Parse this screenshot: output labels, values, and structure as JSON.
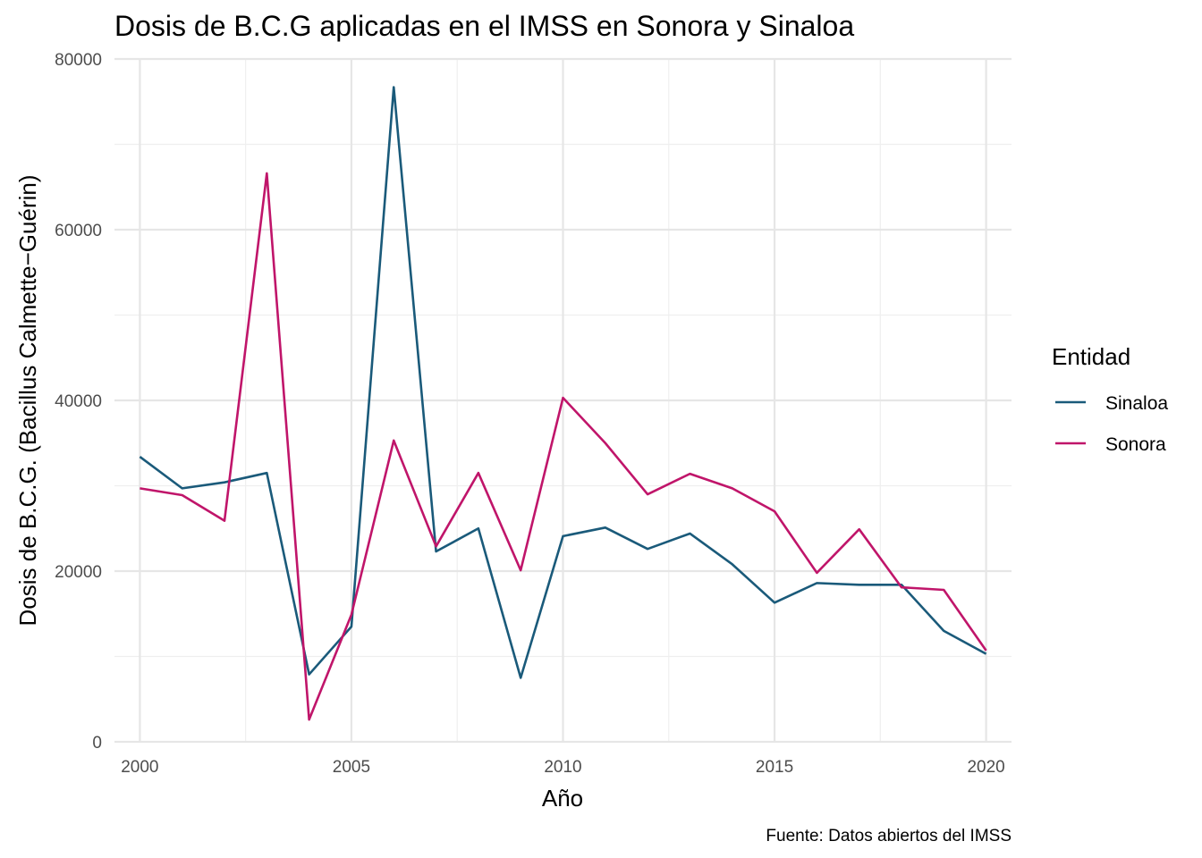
{
  "chart_data": {
    "type": "line",
    "title": "Dosis de B.C.G aplicadas en el IMSS en Sonora y Sinaloa",
    "xlabel": "Año",
    "ylabel": "Dosis de B.C.G. (Bacillus Calmette−Guérin)",
    "caption": "Fuente: Datos abiertos del IMSS",
    "legend_title": "Entidad",
    "legend_position": "right",
    "grid": true,
    "xlim": [
      1999.4,
      2020.6
    ],
    "ylim": [
      0,
      80000
    ],
    "x_ticks": [
      2000,
      2005,
      2010,
      2015,
      2020
    ],
    "x_tick_labels": [
      "2000",
      "2005",
      "2010",
      "2015",
      "2020"
    ],
    "y_ticks": [
      0,
      20000,
      40000,
      60000,
      80000
    ],
    "y_tick_labels": [
      "0",
      "20000",
      "40000",
      "60000",
      "80000"
    ],
    "x": [
      2000,
      2001,
      2002,
      2003,
      2004,
      2005,
      2006,
      2007,
      2008,
      2009,
      2010,
      2011,
      2012,
      2013,
      2014,
      2015,
      2016,
      2017,
      2018,
      2019,
      2020
    ],
    "series": [
      {
        "name": "Sinaloa",
        "color": "#1a5a7a",
        "values": [
          33400,
          29700,
          30400,
          31500,
          7900,
          13500,
          76700,
          22300,
          25000,
          7500,
          24100,
          25100,
          22600,
          24400,
          20800,
          16300,
          18600,
          18400,
          18400,
          13000,
          10300
        ]
      },
      {
        "name": "Sonora",
        "color": "#c0156a",
        "values": [
          29700,
          28900,
          25900,
          66600,
          2600,
          14900,
          35300,
          22900,
          31500,
          20100,
          40300,
          35000,
          29000,
          31400,
          29700,
          27000,
          19800,
          24900,
          18100,
          17800,
          10700
        ]
      }
    ]
  }
}
